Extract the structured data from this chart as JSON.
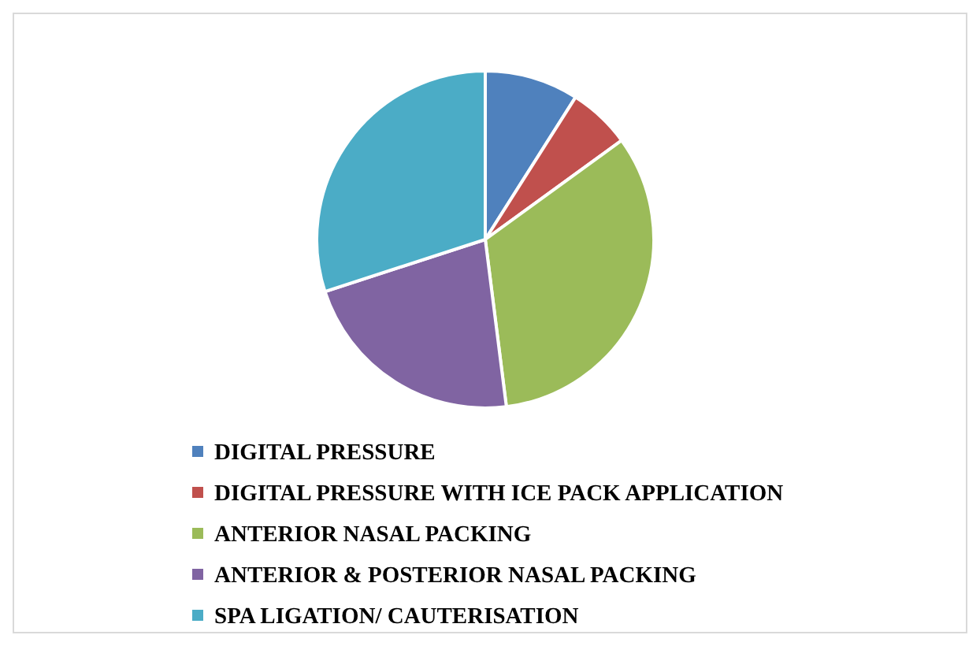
{
  "chart_data": {
    "type": "pie",
    "categories": [
      "DIGITAL PRESSURE",
      "DIGITAL PRESSURE WITH ICE PACK APPLICATION",
      "ANTERIOR NASAL PACKING",
      "ANTERIOR & POSTERIOR NASAL PACKING",
      "SPA LIGATION/ CAUTERISATION"
    ],
    "values": [
      9,
      6,
      33,
      22,
      30
    ],
    "colors": [
      "#4f81bd",
      "#c0504d",
      "#9bbb59",
      "#8064a2",
      "#4bacc6"
    ],
    "legend": "bottom"
  }
}
